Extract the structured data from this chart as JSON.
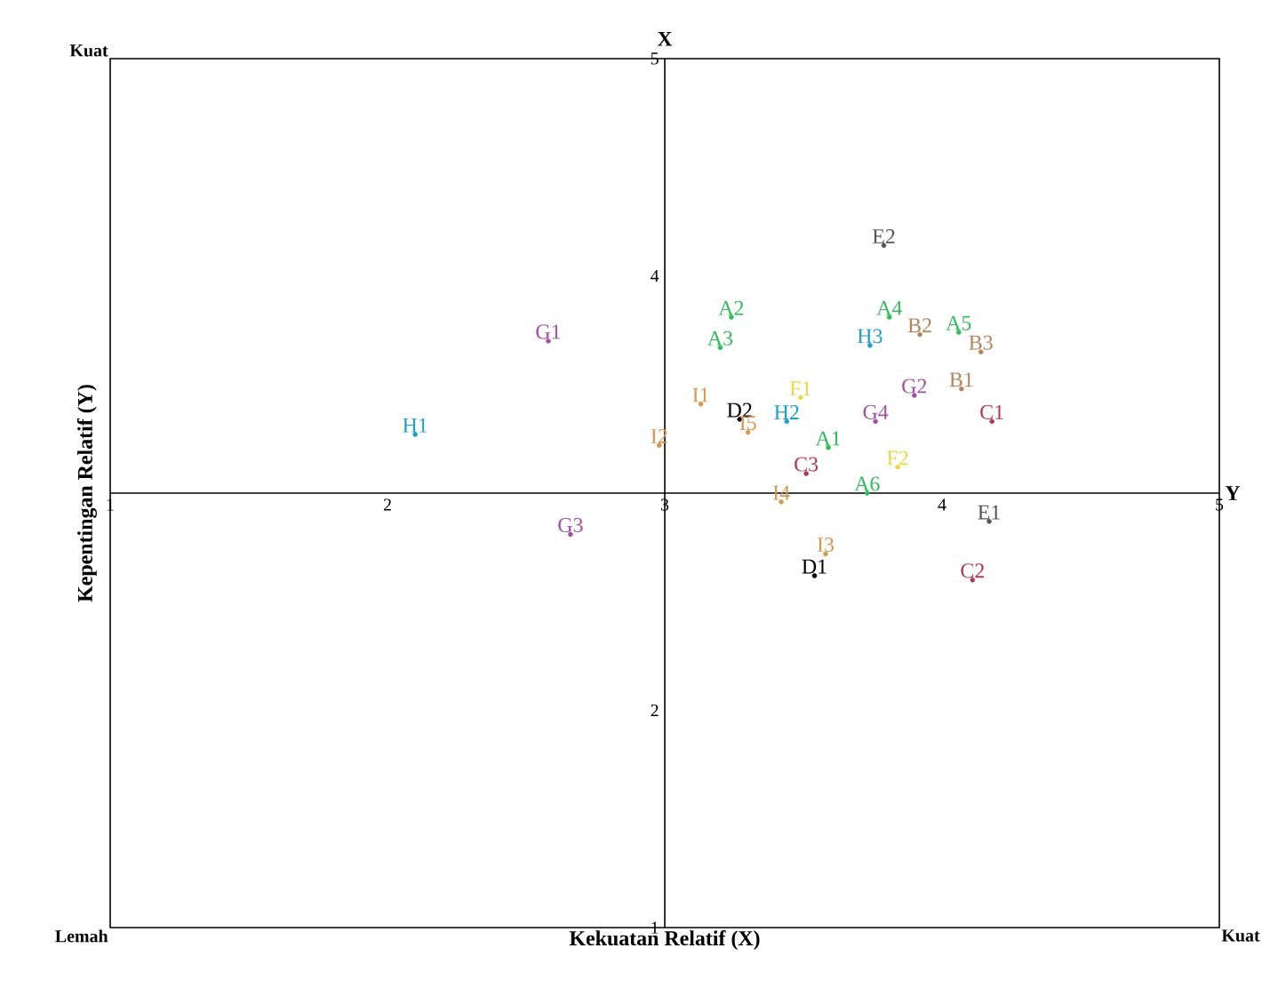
{
  "chart_data": {
    "type": "scatter",
    "xlabel": "Kekuatan Relatif (X)",
    "ylabel": "Kepentingan Relatif (Y)",
    "xlim": [
      1,
      5
    ],
    "ylim": [
      1,
      5
    ],
    "xticks": [
      1,
      2,
      3,
      4,
      5
    ],
    "yticks": [
      1,
      2,
      4,
      5
    ],
    "marker": "circle",
    "annotations": [
      "Kuat",
      "Lemah",
      "Kuat",
      "X",
      "Y"
    ],
    "series": [
      {
        "color": "#2ebd59",
        "x": [
          3.59,
          3.24,
          3.2,
          3.81,
          4.06,
          3.73
        ],
        "values": [
          3.21,
          3.81,
          3.67,
          3.81,
          3.74,
          3.0
        ],
        "value_labels": [
          "A1",
          "A2",
          "A3",
          "A4",
          "A5",
          "A6"
        ]
      },
      {
        "color": "#b5835a",
        "x": [
          4.07,
          3.92,
          4.14
        ],
        "values": [
          3.48,
          3.73,
          3.65
        ],
        "value_labels": [
          "B1",
          "B2",
          "B3"
        ]
      },
      {
        "color": "#b5364f",
        "x": [
          4.18,
          4.11,
          3.51
        ],
        "values": [
          3.33,
          2.6,
          3.09
        ],
        "value_labels": [
          "C1",
          "C2",
          "C3"
        ]
      },
      {
        "color": "#000000",
        "x": [
          3.54,
          3.27
        ],
        "values": [
          2.62,
          3.34
        ],
        "value_labels": [
          "D1",
          "D2"
        ]
      },
      {
        "color": "#555555",
        "x": [
          4.17,
          3.79
        ],
        "values": [
          2.87,
          4.14
        ],
        "value_labels": [
          "E1",
          "E2"
        ]
      },
      {
        "color": "#ecd83a",
        "x": [
          3.49,
          3.84
        ],
        "values": [
          3.44,
          3.12
        ],
        "value_labels": [
          "F1",
          "F2"
        ]
      },
      {
        "color": "#a64ca6",
        "x": [
          2.58,
          3.9,
          2.66,
          3.76
        ],
        "values": [
          3.7,
          3.45,
          2.81,
          3.33
        ],
        "value_labels": [
          "G1",
          "G2",
          "G3",
          "G4"
        ]
      },
      {
        "color": "#1a9fd0",
        "x": [
          2.1,
          3.44,
          3.74
        ],
        "values": [
          3.27,
          3.33,
          3.68
        ],
        "value_labels": [
          "H1",
          "H2",
          "H3"
        ]
      },
      {
        "color": "#d9954a",
        "x": [
          3.13,
          2.98,
          3.58,
          3.42,
          3.3
        ],
        "values": [
          3.41,
          3.22,
          2.72,
          2.96,
          3.28
        ],
        "value_labels": [
          "I1",
          "I2",
          "I3",
          "I4",
          "I5"
        ]
      }
    ]
  }
}
